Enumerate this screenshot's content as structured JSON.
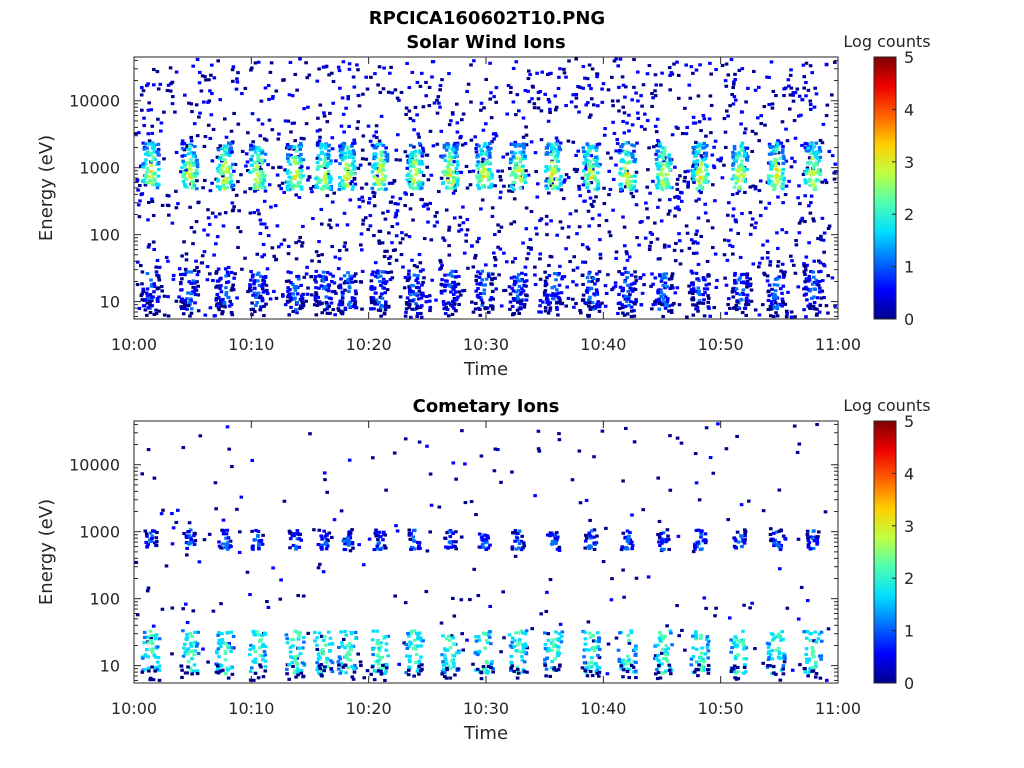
{
  "figure_title": "RPCICA160602T10.PNG",
  "colormap": [
    "#00008f",
    "#0000ff",
    "#0070ff",
    "#00dfff",
    "#50ffaf",
    "#bfff40",
    "#ffcf00",
    "#ff6000",
    "#ef0000",
    "#800000"
  ],
  "chart_data": [
    {
      "type": "heatmap",
      "title": "Solar Wind Ions",
      "xlabel": "Time",
      "ylabel": "Energy (eV)",
      "x_ticks": [
        "10:00",
        "10:10",
        "10:20",
        "10:30",
        "10:40",
        "10:50",
        "11:00"
      ],
      "y_scale": "log",
      "y_ticks": [
        "10",
        "100",
        "1000",
        "10000"
      ],
      "y_tick_values": [
        10,
        100,
        1000,
        10000
      ],
      "ylim": [
        5.5,
        45000
      ],
      "xlim_minutes": [
        0,
        60
      ],
      "colorbar": {
        "label": "Log counts",
        "ticks": [
          "0",
          "1",
          "2",
          "3",
          "4",
          "5"
        ],
        "range": [
          0,
          5
        ]
      },
      "sweep_times_minutes": [
        1.3,
        4.6,
        7.6,
        10.4,
        13.6,
        16.0,
        18.0,
        20.8,
        23.8,
        26.8,
        29.7,
        32.6,
        35.6,
        38.8,
        41.9,
        45.0,
        48.1,
        51.5,
        54.6,
        57.7
      ],
      "peak_energy_eV": 800,
      "peak_log_counts": 2.8,
      "low_energy_band_eV": [
        8,
        30
      ],
      "low_energy_log_counts": 1.0,
      "background_log_counts": 0.3
    },
    {
      "type": "heatmap",
      "title": "Cometary Ions",
      "xlabel": "Time",
      "ylabel": "Energy (eV)",
      "x_ticks": [
        "10:00",
        "10:10",
        "10:20",
        "10:30",
        "10:40",
        "10:50",
        "11:00"
      ],
      "y_scale": "log",
      "y_ticks": [
        "10",
        "100",
        "1000",
        "10000"
      ],
      "y_tick_values": [
        10,
        100,
        1000,
        10000
      ],
      "ylim": [
        5.5,
        45000
      ],
      "xlim_minutes": [
        0,
        60
      ],
      "colorbar": {
        "label": "Log counts",
        "ticks": [
          "0",
          "1",
          "2",
          "3",
          "4",
          "5"
        ],
        "range": [
          0,
          5
        ]
      },
      "sweep_times_minutes": [
        1.3,
        4.6,
        7.6,
        10.4,
        13.6,
        16.0,
        18.0,
        20.8,
        23.8,
        26.8,
        29.7,
        32.6,
        35.6,
        38.8,
        41.9,
        45.0,
        48.1,
        51.5,
        54.6,
        57.7
      ],
      "peak_energy_eV": 700,
      "peak_log_counts": 1.2,
      "low_energy_band_eV": [
        8,
        35
      ],
      "low_energy_log_counts": 2.0,
      "background_log_counts": 0.2
    }
  ]
}
